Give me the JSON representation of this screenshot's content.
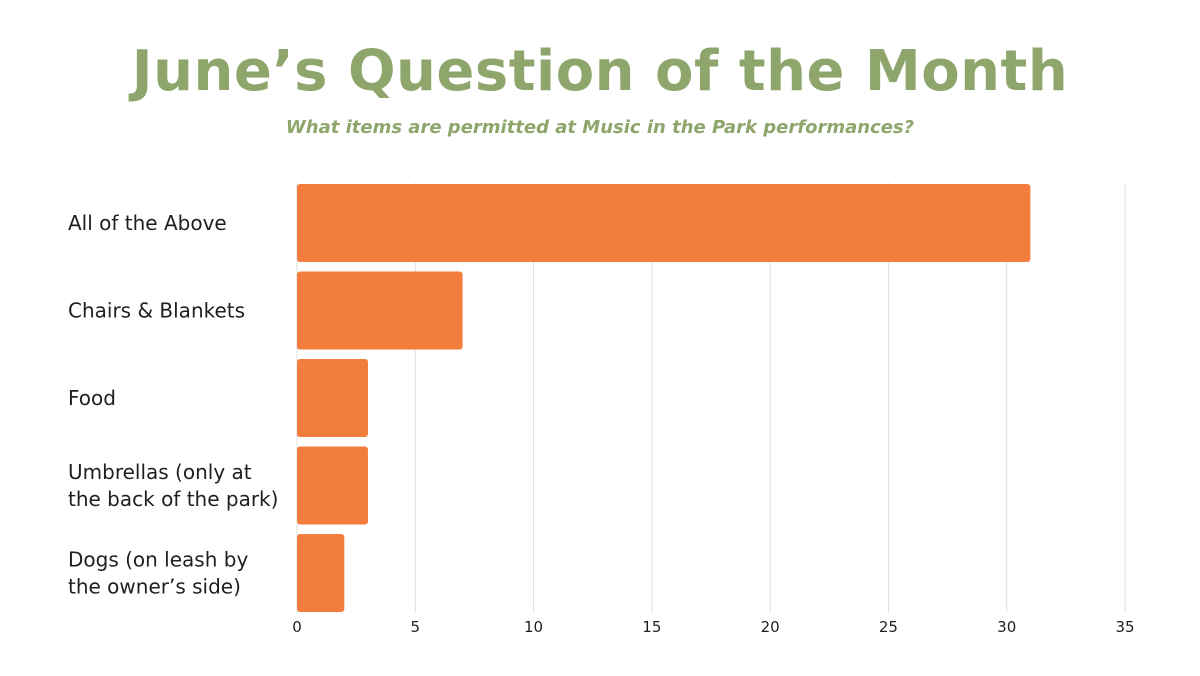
{
  "chart_data": {
    "type": "bar",
    "orientation": "horizontal",
    "title": "June’s Question of the Month",
    "subtitle": "What items are permitted at Music in the Park performances?",
    "categories": [
      [
        "All of the Above"
      ],
      [
        "Chairs & Blankets"
      ],
      [
        "Food"
      ],
      [
        "Umbrellas (only at",
        "the back of the park)"
      ],
      [
        "Dogs (on leash by",
        "the owner’s side)"
      ]
    ],
    "values": [
      31,
      7,
      3,
      3,
      2
    ],
    "xlim": [
      0,
      35
    ],
    "xticks": [
      "0",
      "5",
      "10",
      "15",
      "20",
      "25",
      "30",
      "35"
    ],
    "grid": true,
    "bar_color": "#f27d3d",
    "title_color": "#8ea66b"
  }
}
